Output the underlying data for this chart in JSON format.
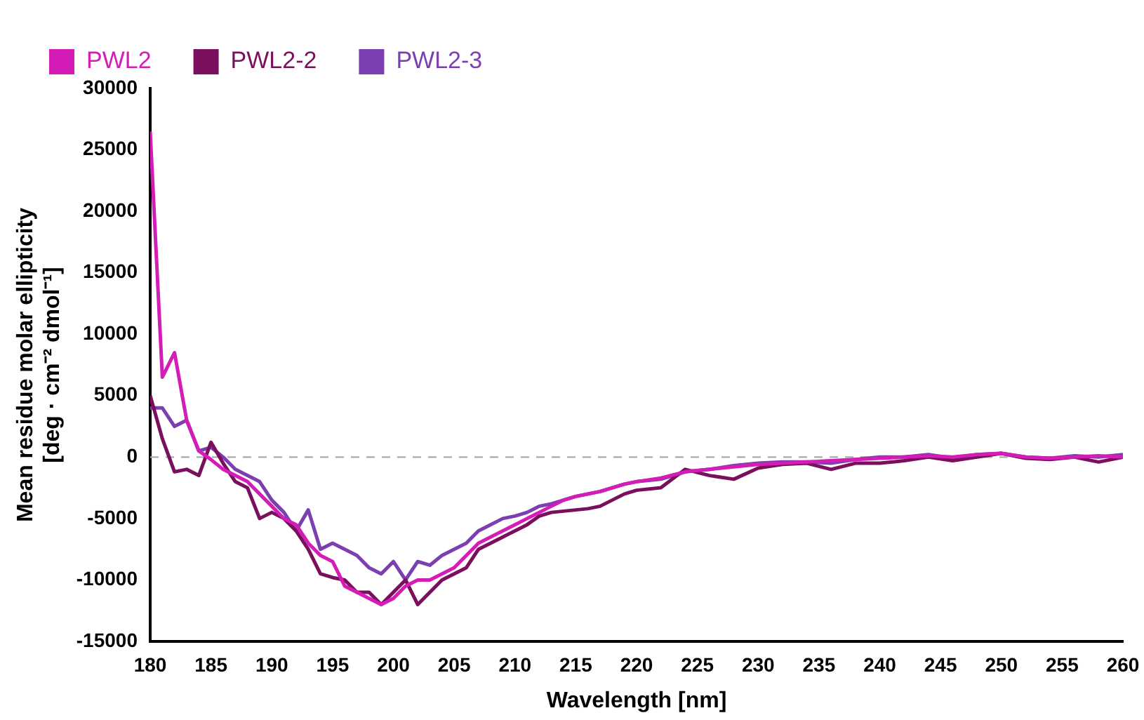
{
  "chart_data": {
    "type": "line",
    "xlabel": "Wavelength [nm]",
    "ylabel": "Mean residue molar ellipticity\n[deg · cm⁻² dmol⁻¹]",
    "x": [
      180,
      181,
      182,
      183,
      184,
      185,
      186,
      187,
      188,
      189,
      190,
      191,
      192,
      193,
      194,
      195,
      196,
      197,
      198,
      199,
      200,
      201,
      202,
      203,
      204,
      205,
      206,
      207,
      208,
      209,
      210,
      211,
      212,
      213,
      214,
      215,
      216,
      217,
      218,
      219,
      220,
      222,
      224,
      226,
      228,
      230,
      232,
      234,
      236,
      238,
      240,
      242,
      244,
      246,
      248,
      250,
      252,
      254,
      256,
      258,
      260
    ],
    "series": [
      {
        "name": "PWL2",
        "color": "#d41db6",
        "values": [
          26500,
          6500,
          8500,
          3000,
          500,
          -200,
          -1000,
          -1500,
          -2000,
          -3000,
          -4000,
          -5000,
          -5500,
          -7000,
          -8000,
          -8500,
          -10500,
          -11000,
          -11500,
          -12000,
          -11500,
          -10500,
          -10000,
          -10000,
          -9500,
          -9000,
          -8000,
          -7000,
          -6500,
          -6000,
          -5500,
          -5000,
          -4500,
          -4000,
          -3500,
          -3200,
          -3000,
          -2800,
          -2500,
          -2200,
          -2000,
          -1700,
          -1200,
          -1000,
          -800,
          -600,
          -500,
          -400,
          -300,
          -200,
          -100,
          0,
          100,
          0,
          200,
          300,
          0,
          -100,
          0,
          100,
          0
        ]
      },
      {
        "name": "PWL2-2",
        "color": "#7a0f5e",
        "values": [
          5000,
          1500,
          -1200,
          -1000,
          -1500,
          1200,
          -500,
          -2000,
          -2500,
          -5000,
          -4500,
          -5000,
          -6000,
          -7500,
          -9500,
          -9800,
          -10000,
          -11000,
          -11000,
          -12000,
          -11000,
          -10000,
          -12000,
          -11000,
          -10000,
          -9500,
          -9000,
          -7500,
          -7000,
          -6500,
          -6000,
          -5500,
          -4800,
          -4500,
          -4400,
          -4300,
          -4200,
          -4000,
          -3500,
          -3000,
          -2700,
          -2500,
          -1000,
          -1500,
          -1800,
          -900,
          -600,
          -500,
          -1000,
          -500,
          -500,
          -300,
          0,
          -300,
          0,
          300,
          -100,
          -200,
          0,
          -400,
          0
        ]
      },
      {
        "name": "PWL2-3",
        "color": "#7b3fb0",
        "values": [
          4000,
          4000,
          2500,
          3000,
          500,
          800,
          0,
          -1000,
          -1500,
          -2000,
          -3500,
          -4500,
          -6000,
          -4300,
          -7500,
          -7000,
          -7500,
          -8000,
          -9000,
          -9500,
          -8500,
          -10000,
          -8500,
          -8800,
          -8000,
          -7500,
          -7000,
          -6000,
          -5500,
          -5000,
          -4800,
          -4500,
          -4000,
          -3800,
          -3500,
          -3200,
          -3000,
          -2800,
          -2500,
          -2200,
          -2000,
          -1800,
          -1200,
          -1000,
          -700,
          -500,
          -400,
          -400,
          -500,
          -200,
          0,
          0,
          200,
          -100,
          200,
          300,
          0,
          -100,
          100,
          0,
          200
        ]
      }
    ],
    "xlim": [
      180,
      260
    ],
    "xticks": [
      180,
      185,
      190,
      195,
      200,
      205,
      210,
      215,
      220,
      225,
      230,
      235,
      240,
      245,
      250,
      255,
      260
    ],
    "ylim": [
      -15000,
      30000
    ],
    "yticks": [
      -15000,
      -10000,
      -5000,
      0,
      5000,
      10000,
      15000,
      20000,
      25000,
      30000
    ],
    "ref_lines": [
      {
        "axis": "y",
        "value": 0,
        "color": "#aaaaaa",
        "line_style": "dashed"
      }
    ],
    "grid": false,
    "legend": "top left",
    "marker": "none",
    "line_style": "solid"
  }
}
